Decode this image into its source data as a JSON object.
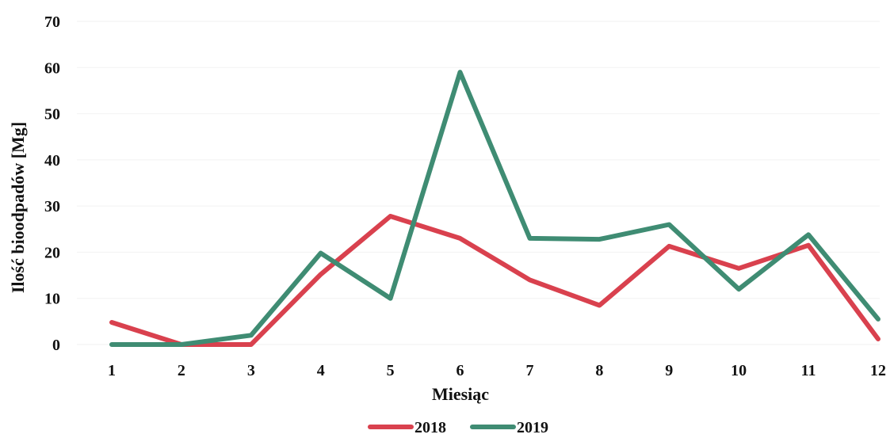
{
  "chart_data": {
    "type": "line",
    "title": "",
    "xlabel": "Miesiąc",
    "ylabel": "Ilość bioodpadów [Mg]",
    "categories": [
      "1",
      "2",
      "3",
      "4",
      "5",
      "6",
      "7",
      "8",
      "9",
      "10",
      "11",
      "12"
    ],
    "ylim": [
      0,
      70
    ],
    "yticks": [
      0,
      10,
      20,
      30,
      40,
      50,
      60,
      70
    ],
    "grid": true,
    "legend_position": "bottom",
    "series": [
      {
        "name": "2018",
        "color": "#d9414e",
        "values": [
          4.8,
          0,
          0,
          15.2,
          27.8,
          23,
          14,
          8.5,
          21.3,
          16.5,
          21.5,
          1.2
        ]
      },
      {
        "name": "2019",
        "color": "#3f8c73",
        "values": [
          0,
          0,
          2,
          19.8,
          10,
          59,
          23,
          22.8,
          26,
          12,
          23.8,
          5.5
        ]
      }
    ]
  }
}
